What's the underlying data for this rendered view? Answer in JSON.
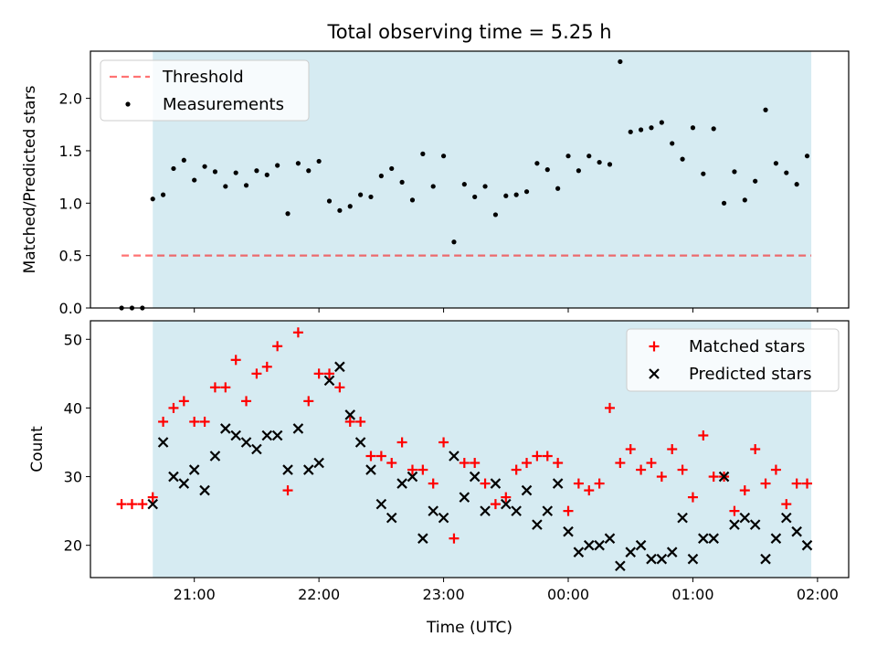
{
  "figure": {
    "title": "Total observing time = 5.25 h",
    "xlabel": "Time (UTC)"
  },
  "colors": {
    "shade": "#add8e6",
    "threshold": "#ff0000",
    "measurement": "#000000",
    "matched": "#ff0000",
    "predicted": "#000000"
  },
  "chart_data": [
    {
      "type": "scatter",
      "panel": "top",
      "ylabel": "Matched/Predicted stars",
      "ylim": [
        0,
        2.45
      ],
      "yticks": [
        "0.0",
        "0.5",
        "1.0",
        "1.5",
        "2.0"
      ],
      "xlim": [
        "20:10",
        "02:15"
      ],
      "shaded_interval": [
        "20:40",
        "01:57"
      ],
      "legend": {
        "placement": "top-left",
        "entries": [
          "Threshold",
          "Measurements"
        ]
      },
      "threshold": {
        "name": "Threshold",
        "value": 0.5,
        "x_range": [
          "20:25",
          "01:57"
        ],
        "style": "dashed"
      },
      "series": [
        {
          "name": "Measurements",
          "x": [
            "20:25",
            "20:30",
            "20:35",
            "20:40",
            "20:45",
            "20:50",
            "20:55",
            "21:00",
            "21:05",
            "21:10",
            "21:15",
            "21:20",
            "21:25",
            "21:30",
            "21:35",
            "21:40",
            "21:45",
            "21:50",
            "21:55",
            "22:00",
            "22:05",
            "22:10",
            "22:15",
            "22:20",
            "22:25",
            "22:30",
            "22:35",
            "22:40",
            "22:45",
            "22:50",
            "22:55",
            "23:00",
            "23:05",
            "23:10",
            "23:15",
            "23:20",
            "23:25",
            "23:30",
            "23:35",
            "23:40",
            "23:45",
            "23:50",
            "23:55",
            "00:00",
            "00:05",
            "00:10",
            "00:15",
            "00:20",
            "00:25",
            "00:30",
            "00:35",
            "00:40",
            "00:45",
            "00:50",
            "00:55",
            "01:00",
            "01:05",
            "01:10",
            "01:15",
            "01:20",
            "01:25",
            "01:30",
            "01:35",
            "01:40",
            "01:45",
            "01:50",
            "01:55"
          ],
          "y": [
            0.0,
            0.0,
            0.0,
            1.04,
            1.08,
            1.33,
            1.41,
            1.22,
            1.35,
            1.3,
            1.16,
            1.29,
            1.17,
            1.31,
            1.27,
            1.36,
            0.9,
            1.38,
            1.31,
            1.4,
            1.02,
            0.93,
            0.97,
            1.08,
            1.06,
            1.26,
            1.33,
            1.2,
            1.03,
            1.47,
            1.16,
            1.45,
            0.63,
            1.18,
            1.06,
            1.16,
            0.89,
            1.07,
            1.08,
            1.11,
            1.38,
            1.32,
            1.14,
            1.45,
            1.31,
            1.45,
            1.39,
            1.37,
            2.35,
            1.68,
            1.7,
            1.72,
            1.77,
            1.57,
            1.42,
            1.72,
            1.28,
            1.71,
            1.0,
            1.3,
            1.03,
            1.21,
            1.89,
            1.38,
            1.29,
            1.18,
            1.45
          ]
        }
      ]
    },
    {
      "type": "scatter",
      "panel": "bottom",
      "ylabel": "Count",
      "ylim": [
        15.3,
        52.7
      ],
      "yticks": [
        "20",
        "30",
        "40",
        "50"
      ],
      "xlim": [
        "20:10",
        "02:15"
      ],
      "xticks": [
        "21:00",
        "22:00",
        "23:00",
        "00:00",
        "01:00",
        "02:00"
      ],
      "shaded_interval": [
        "20:40",
        "01:57"
      ],
      "legend": {
        "placement": "top-right",
        "entries": [
          "Matched stars",
          "Predicted stars"
        ]
      },
      "series": [
        {
          "name": "Matched stars",
          "marker": "plus",
          "x": [
            "20:25",
            "20:30",
            "20:35",
            "20:40",
            "20:45",
            "20:50",
            "20:55",
            "21:00",
            "21:05",
            "21:10",
            "21:15",
            "21:20",
            "21:25",
            "21:30",
            "21:35",
            "21:40",
            "21:45",
            "21:50",
            "21:55",
            "22:00",
            "22:05",
            "22:10",
            "22:15",
            "22:20",
            "22:25",
            "22:30",
            "22:35",
            "22:40",
            "22:45",
            "22:50",
            "22:55",
            "23:00",
            "23:05",
            "23:10",
            "23:15",
            "23:20",
            "23:25",
            "23:30",
            "23:35",
            "23:40",
            "23:45",
            "23:50",
            "23:55",
            "00:00",
            "00:05",
            "00:10",
            "00:15",
            "00:20",
            "00:25",
            "00:30",
            "00:35",
            "00:40",
            "00:45",
            "00:50",
            "00:55",
            "01:00",
            "01:05",
            "01:10",
            "01:15",
            "01:20",
            "01:25",
            "01:30",
            "01:35",
            "01:40",
            "01:45",
            "01:50",
            "01:55"
          ],
          "y": [
            26,
            26,
            26,
            27,
            38,
            40,
            41,
            38,
            38,
            43,
            43,
            47,
            41,
            45,
            46,
            49,
            28,
            51,
            41,
            45,
            45,
            43,
            38,
            38,
            33,
            33,
            32,
            35,
            31,
            31,
            29,
            35,
            21,
            32,
            32,
            29,
            26,
            27,
            31,
            32,
            33,
            33,
            32,
            25,
            29,
            28,
            29,
            40,
            32,
            34,
            31,
            32,
            30,
            34,
            31,
            27,
            36,
            30,
            30,
            25,
            28,
            34,
            29,
            31,
            26,
            29,
            29
          ]
        },
        {
          "name": "Predicted stars",
          "marker": "x",
          "x": [
            "20:40",
            "20:45",
            "20:50",
            "20:55",
            "21:00",
            "21:05",
            "21:10",
            "21:15",
            "21:20",
            "21:25",
            "21:30",
            "21:35",
            "21:40",
            "21:45",
            "21:50",
            "21:55",
            "22:00",
            "22:05",
            "22:10",
            "22:15",
            "22:20",
            "22:25",
            "22:30",
            "22:35",
            "22:40",
            "22:45",
            "22:50",
            "22:55",
            "23:00",
            "23:05",
            "23:10",
            "23:15",
            "23:20",
            "23:25",
            "23:30",
            "23:35",
            "23:40",
            "23:45",
            "23:50",
            "23:55",
            "00:00",
            "00:05",
            "00:10",
            "00:15",
            "00:20",
            "00:25",
            "00:30",
            "00:35",
            "00:40",
            "00:45",
            "00:50",
            "00:55",
            "01:00",
            "01:05",
            "01:10",
            "01:15",
            "01:20",
            "01:25",
            "01:30",
            "01:35",
            "01:40",
            "01:45",
            "01:50",
            "01:55"
          ],
          "y": [
            26,
            35,
            30,
            29,
            31,
            28,
            33,
            37,
            36,
            35,
            34,
            36,
            36,
            31,
            37,
            31,
            32,
            44,
            46,
            39,
            35,
            31,
            26,
            24,
            29,
            30,
            21,
            25,
            24,
            33,
            27,
            30,
            25,
            29,
            26,
            25,
            28,
            23,
            25,
            29,
            22,
            19,
            20,
            20,
            21,
            17,
            19,
            20,
            18,
            18,
            19,
            24,
            18,
            21,
            21,
            30,
            23,
            24,
            23,
            18,
            21,
            24,
            22,
            20
          ]
        }
      ]
    }
  ]
}
